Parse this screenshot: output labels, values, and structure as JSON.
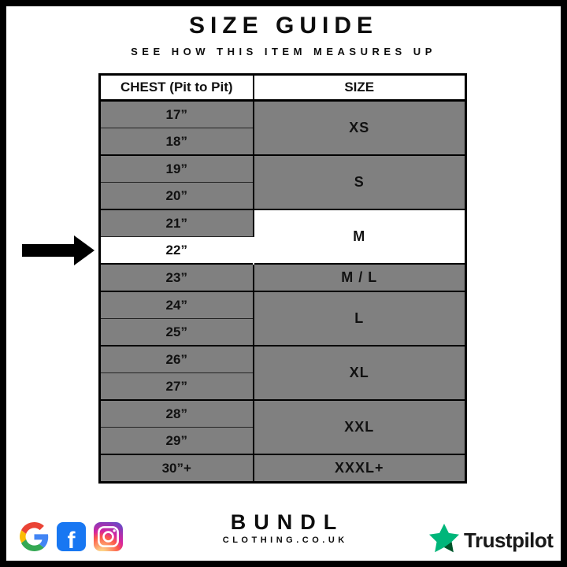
{
  "header": {
    "title": "SIZE GUIDE",
    "subtitle": "SEE HOW THIS ITEM MEASURES UP"
  },
  "table": {
    "columns": [
      "CHEST (Pit to Pit)",
      "SIZE"
    ],
    "groups": [
      {
        "size": "XS",
        "highlight": false,
        "measurements": [
          {
            "label": "17”",
            "highlight": false
          },
          {
            "label": "18”",
            "highlight": false
          }
        ]
      },
      {
        "size": "S",
        "highlight": false,
        "measurements": [
          {
            "label": "19”",
            "highlight": false
          },
          {
            "label": "20”",
            "highlight": false
          }
        ]
      },
      {
        "size": "M",
        "highlight": true,
        "measurements": [
          {
            "label": "21”",
            "highlight": false
          },
          {
            "label": "22”",
            "highlight": true
          }
        ]
      },
      {
        "size": "M / L",
        "highlight": false,
        "measurements": [
          {
            "label": "23”",
            "highlight": false
          }
        ]
      },
      {
        "size": "L",
        "highlight": false,
        "measurements": [
          {
            "label": "24”",
            "highlight": false
          },
          {
            "label": "25”",
            "highlight": false
          }
        ]
      },
      {
        "size": "XL",
        "highlight": false,
        "measurements": [
          {
            "label": "26”",
            "highlight": false
          },
          {
            "label": "27”",
            "highlight": false
          }
        ]
      },
      {
        "size": "XXL",
        "highlight": false,
        "measurements": [
          {
            "label": "28”",
            "highlight": false
          },
          {
            "label": "29”",
            "highlight": false
          }
        ]
      },
      {
        "size": "XXXL+",
        "highlight": false,
        "measurements": [
          {
            "label": "30”+",
            "highlight": false
          }
        ]
      }
    ],
    "highlighted_result": {
      "measurement": "22”",
      "size": "M"
    }
  },
  "footer": {
    "brand": {
      "name": "BUNDL",
      "domain": "CLOTHING.CO.UK"
    },
    "social_icons": [
      "google-icon",
      "facebook-icon",
      "instagram-icon"
    ],
    "trustpilot_label": "Trustpilot"
  },
  "colors": {
    "row_gray": "#808080",
    "highlight_white": "#ffffff",
    "border_black": "#000000",
    "trustpilot_green": "#00b67a",
    "trustpilot_dark_green": "#005128",
    "facebook_blue": "#1877f2",
    "google_blue": "#4285F4",
    "google_red": "#EA4335",
    "google_yellow": "#FBBC05",
    "google_green": "#34A853"
  }
}
